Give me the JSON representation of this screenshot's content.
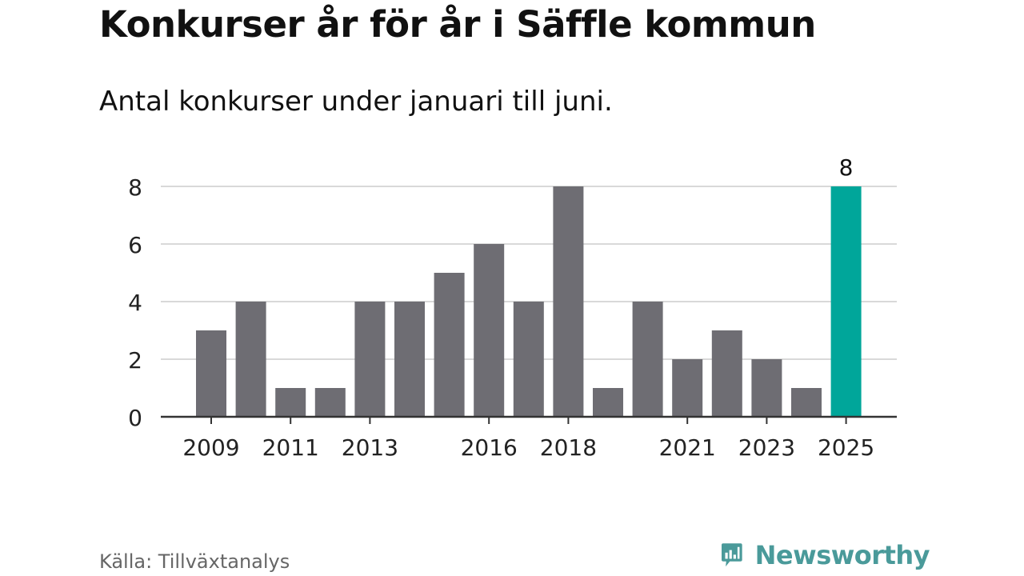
{
  "header": {
    "title": "Konkurser år för år i Säffle kommun",
    "subtitle": "Antal konkurser under januari till juni."
  },
  "footer": {
    "source": "Källa: Tillväxtanalys",
    "logo_text": "Newsworthy"
  },
  "colors": {
    "bar": "#6e6d73",
    "highlight": "#00a69a",
    "grid": "#d9d9d9",
    "axis": "#333333",
    "logo": "#4a9a9a"
  },
  "chart_data": {
    "type": "bar",
    "categories": [
      "2009",
      "2010",
      "2011",
      "2012",
      "2013",
      "2014",
      "2015",
      "2016",
      "2017",
      "2018",
      "2019",
      "2020",
      "2021",
      "2022",
      "2023",
      "2024",
      "2025"
    ],
    "values": [
      3,
      4,
      1,
      1,
      4,
      4,
      5,
      6,
      4,
      8,
      1,
      4,
      2,
      3,
      2,
      1,
      8
    ],
    "x_tick_labels": [
      "2009",
      "2011",
      "2013",
      "2016",
      "2018",
      "2021",
      "2023",
      "2025"
    ],
    "y_ticks": [
      0,
      2,
      4,
      6,
      8
    ],
    "ylim": [
      0,
      8
    ],
    "highlight_category": "2025",
    "highlight_label": "8",
    "grid": true,
    "legend": "none",
    "xlabel": "",
    "ylabel": ""
  }
}
